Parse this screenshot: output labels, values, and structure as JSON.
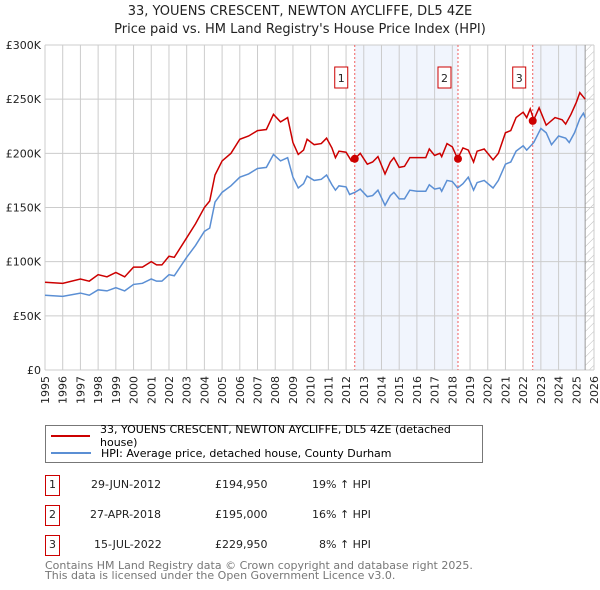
{
  "title": "33, YOUENS CRESCENT, NEWTON AYCLIFFE, DL5 4ZE",
  "subtitle": "Price paid vs. HM Land Registry's House Price Index (HPI)",
  "chart_data": {
    "type": "line",
    "xlim": [
      1995,
      2026
    ],
    "ylim": [
      0,
      300000
    ],
    "yticks": [
      0,
      50000,
      100000,
      150000,
      200000,
      250000,
      300000
    ],
    "ytick_labels": [
      "£0",
      "£50K",
      "£100K",
      "£150K",
      "£200K",
      "£250K",
      "£300K"
    ],
    "xticks": [
      "1995",
      "1996",
      "1997",
      "1998",
      "1999",
      "2000",
      "2001",
      "2002",
      "2003",
      "2004",
      "2005",
      "2006",
      "2007",
      "2008",
      "2009",
      "2010",
      "2011",
      "2012",
      "2013",
      "2014",
      "2015",
      "2016",
      "2017",
      "2018",
      "2019",
      "2020",
      "2021",
      "2022",
      "2023",
      "2024",
      "2025",
      "2026"
    ],
    "grid": true,
    "shaded_ranges": [
      [
        2012.49,
        2018.32
      ],
      [
        2022.54,
        2025.5
      ]
    ],
    "hatched_from": 2025.5,
    "series": [
      {
        "name": "33, YOUENS CRESCENT, NEWTON AYCLIFFE, DL5 4ZE (detached house)",
        "color": "#cc0000",
        "x": [
          1995,
          1996,
          1997,
          1997.5,
          1998,
          1998.5,
          1999,
          1999.5,
          2000,
          2000.5,
          2001,
          2001.3,
          2001.6,
          2002,
          2002.3,
          2003,
          2003.5,
          2004,
          2004.3,
          2004.6,
          2005,
          2005.5,
          2006,
          2006.5,
          2007,
          2007.5,
          2007.9,
          2008.3,
          2008.7,
          2009,
          2009.3,
          2009.6,
          2009.8,
          2010.2,
          2010.6,
          2010.9,
          2011.2,
          2011.4,
          2011.6,
          2012,
          2012.3,
          2012.5,
          2012.8,
          2013.2,
          2013.5,
          2013.8,
          2014.2,
          2014.5,
          2014.7,
          2015,
          2015.3,
          2015.6,
          2016,
          2016.5,
          2016.7,
          2017,
          2017.3,
          2017.4,
          2017.7,
          2018,
          2018.3,
          2018.6,
          2018.9,
          2019.2,
          2019.4,
          2019.8,
          2020.3,
          2020.6,
          2021,
          2021.3,
          2021.6,
          2022,
          2022.2,
          2022.4,
          2022.6,
          2022.9,
          2023.3,
          2023.8,
          2024.2,
          2024.4,
          2024.7,
          2025,
          2025.2,
          2025.5
        ],
        "y": [
          81,
          80,
          84,
          82,
          88,
          86,
          90,
          86,
          95,
          95,
          100,
          97,
          97,
          105,
          104,
          122,
          135,
          150,
          156,
          180,
          193,
          200,
          213,
          216,
          221,
          222,
          236,
          229,
          233,
          210,
          199,
          203,
          213,
          208,
          209,
          214,
          205,
          196,
          202,
          201,
          193,
          195,
          200,
          190,
          192,
          197,
          181,
          192,
          196,
          187,
          188,
          196,
          196,
          196,
          204,
          198,
          200,
          197,
          209,
          206,
          195,
          205,
          203,
          192,
          202,
          204,
          194,
          200,
          219,
          221,
          233,
          238,
          233,
          241,
          231,
          242,
          226,
          233,
          231,
          227,
          236,
          247,
          256,
          250
        ]
      },
      {
        "name": "HPI: Average price, detached house, County Durham",
        "color": "#5b8fd4",
        "x": [
          1995,
          1996,
          1997,
          1997.5,
          1998,
          1998.5,
          1999,
          1999.5,
          2000,
          2000.5,
          2001,
          2001.3,
          2001.6,
          2002,
          2002.3,
          2003,
          2003.5,
          2004,
          2004.3,
          2004.6,
          2005,
          2005.5,
          2006,
          2006.5,
          2007,
          2007.5,
          2007.9,
          2008.3,
          2008.7,
          2009,
          2009.3,
          2009.6,
          2009.8,
          2010.2,
          2010.6,
          2010.9,
          2011.2,
          2011.4,
          2011.6,
          2012,
          2012.2,
          2012.5,
          2012.8,
          2013.2,
          2013.5,
          2013.8,
          2014.2,
          2014.5,
          2014.7,
          2015,
          2015.3,
          2015.6,
          2016,
          2016.5,
          2016.7,
          2017,
          2017.3,
          2017.4,
          2017.7,
          2018,
          2018.3,
          2018.6,
          2018.9,
          2019.2,
          2019.4,
          2019.8,
          2020.3,
          2020.6,
          2021,
          2021.3,
          2021.6,
          2022,
          2022.2,
          2022.6,
          2023,
          2023.3,
          2023.6,
          2024,
          2024.4,
          2024.6,
          2024.9,
          2025.2,
          2025.4,
          2025.5
        ],
        "y": [
          69,
          68,
          71,
          69,
          74,
          73,
          76,
          73,
          79,
          80,
          84,
          82,
          82,
          88,
          87,
          104,
          115,
          128,
          131,
          155,
          164,
          170,
          178,
          181,
          186,
          187,
          199,
          193,
          196,
          178,
          168,
          172,
          179,
          175,
          176,
          180,
          171,
          166,
          170,
          169,
          162,
          164,
          167,
          160,
          161,
          166,
          152,
          161,
          164,
          158,
          158,
          166,
          165,
          165,
          171,
          167,
          168,
          165,
          175,
          174,
          168,
          172,
          178,
          166,
          173,
          175,
          168,
          175,
          190,
          192,
          202,
          207,
          203,
          210,
          223,
          219,
          208,
          216,
          214,
          210,
          219,
          232,
          237,
          233
        ]
      }
    ],
    "y_units": "thousands GBP",
    "sales": [
      {
        "label": "1",
        "x": 2012.49,
        "y": 194.95,
        "date": "29-JUN-2012",
        "price": "£194,950",
        "hpi": "19% ↑ HPI"
      },
      {
        "label": "2",
        "x": 2018.32,
        "y": 195.0,
        "date": "27-APR-2018",
        "price": "£195,000",
        "hpi": "16% ↑ HPI"
      },
      {
        "label": "3",
        "x": 2022.54,
        "y": 229.95,
        "date": "15-JUL-2022",
        "price": "£229,950",
        "hpi": "8% ↑ HPI"
      }
    ]
  },
  "footer": {
    "line1": "Contains HM Land Registry data © Crown copyright and database right 2025.",
    "line2": "This data is licensed under the Open Government Licence v3.0."
  }
}
